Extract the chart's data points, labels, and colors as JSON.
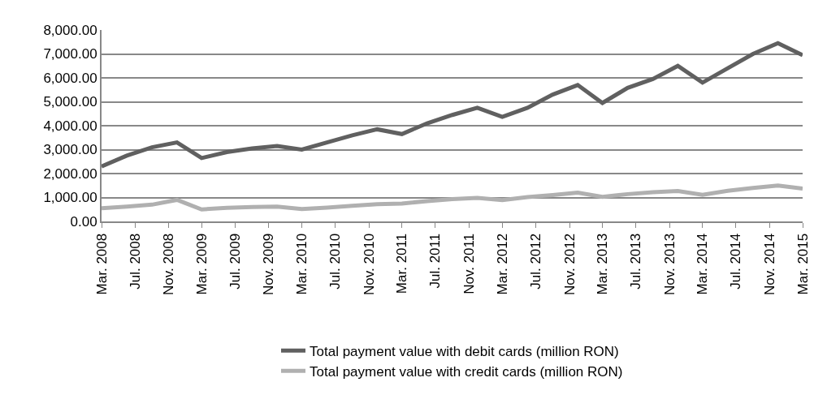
{
  "chart_data": {
    "type": "line",
    "x": [
      "2008-03",
      "2008-06",
      "2008-09",
      "2008-12",
      "2009-03",
      "2009-06",
      "2009-09",
      "2009-12",
      "2010-03",
      "2010-06",
      "2010-09",
      "2010-12",
      "2011-03",
      "2011-06",
      "2011-09",
      "2011-12",
      "2012-03",
      "2012-06",
      "2012-09",
      "2012-12",
      "2013-03",
      "2013-06",
      "2013-09",
      "2013-12",
      "2014-03",
      "2014-06",
      "2014-09",
      "2014-12",
      "2015-03"
    ],
    "series": [
      {
        "name": "Total payment value with debit cards (million RON)",
        "color": "#606060",
        "values": [
          2300,
          2750,
          3100,
          3300,
          2650,
          2900,
          3050,
          3150,
          3000,
          3300,
          3600,
          3850,
          3650,
          4100,
          4450,
          4750,
          4370,
          4750,
          5300,
          5700,
          4950,
          5580,
          5950,
          6500,
          5800,
          6400,
          7000,
          7450,
          6950
        ]
      },
      {
        "name": "Total payment value with credit cards (million RON)",
        "color": "#b0b0b0",
        "values": [
          550,
          620,
          700,
          900,
          500,
          570,
          600,
          620,
          520,
          580,
          650,
          720,
          750,
          850,
          930,
          980,
          890,
          1020,
          1100,
          1200,
          1030,
          1140,
          1220,
          1270,
          1110,
          1280,
          1400,
          1500,
          1370
        ]
      }
    ],
    "xlim": [
      "2008-03",
      "2015-03"
    ],
    "xticks": [
      {
        "value": "2008-03",
        "label": "Mar. 2008"
      },
      {
        "value": "2008-07",
        "label": "Jul. 2008"
      },
      {
        "value": "2008-11",
        "label": "Nov. 2008"
      },
      {
        "value": "2009-03",
        "label": "Mar. 2009"
      },
      {
        "value": "2009-07",
        "label": "Jul. 2009"
      },
      {
        "value": "2009-11",
        "label": "Nov. 2009"
      },
      {
        "value": "2010-03",
        "label": "Mar. 2010"
      },
      {
        "value": "2010-07",
        "label": "Jul. 2010"
      },
      {
        "value": "2010-11",
        "label": "Nov. 2010"
      },
      {
        "value": "2011-03",
        "label": "Mar. 2011"
      },
      {
        "value": "2011-07",
        "label": "Jul. 2011"
      },
      {
        "value": "2011-11",
        "label": "Nov. 2011"
      },
      {
        "value": "2012-03",
        "label": "Mar. 2012"
      },
      {
        "value": "2012-07",
        "label": "Jul. 2012"
      },
      {
        "value": "2012-11",
        "label": "Nov. 2012"
      },
      {
        "value": "2013-03",
        "label": "Mar. 2013"
      },
      {
        "value": "2013-07",
        "label": "Jul. 2013"
      },
      {
        "value": "2013-11",
        "label": "Nov. 2013"
      },
      {
        "value": "2014-03",
        "label": "Mar. 2014"
      },
      {
        "value": "2014-07",
        "label": "Jul. 2014"
      },
      {
        "value": "2014-11",
        "label": "Nov. 2014"
      },
      {
        "value": "2015-03",
        "label": "Mar. 2015"
      }
    ],
    "ylim": [
      0,
      8000
    ],
    "yticks": [
      {
        "value": 0,
        "label": "0.00"
      },
      {
        "value": 1000,
        "label": "1,000.00"
      },
      {
        "value": 2000,
        "label": "2,000.00"
      },
      {
        "value": 3000,
        "label": "3,000.00"
      },
      {
        "value": 4000,
        "label": "4,000.00"
      },
      {
        "value": 5000,
        "label": "5,000.00"
      },
      {
        "value": 6000,
        "label": "6,000.00"
      },
      {
        "value": 7000,
        "label": "7,000.00"
      },
      {
        "value": 8000,
        "label": "8,000.00"
      }
    ],
    "grid": "y",
    "legend": "bottom",
    "marker": "none",
    "line_style": "solid"
  }
}
